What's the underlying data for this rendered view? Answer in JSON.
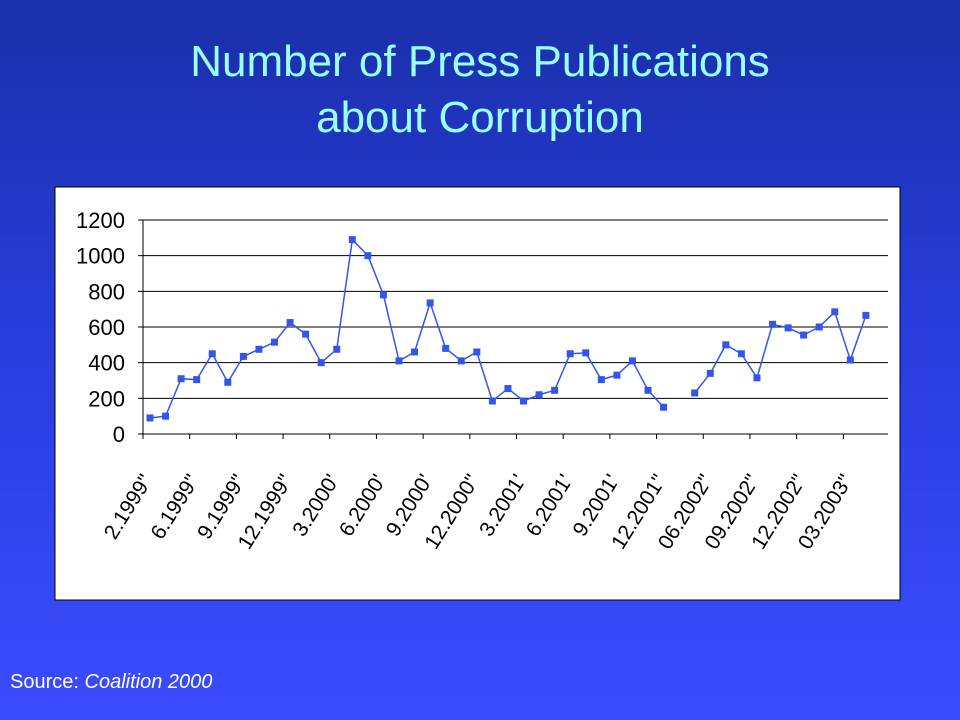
{
  "chart_data": {
    "type": "line",
    "title": [
      "Number of Press Publications",
      "about Corruption"
    ],
    "categories": [
      "2.1999\"",
      null,
      null,
      "6.1999\"",
      null,
      null,
      "9.1999\"",
      null,
      null,
      "12.1999\"",
      null,
      null,
      "3.2000'",
      null,
      null,
      "6.2000'",
      null,
      null,
      "9.2000'",
      null,
      null,
      "12.2000\"",
      null,
      null,
      "3.2001'",
      null,
      null,
      "6.2001'",
      null,
      null,
      "9.2001'",
      null,
      null,
      "12.2001\"",
      null,
      null,
      "06.2002\"",
      null,
      null,
      "09.2002\"",
      null,
      null,
      "12.2002\"",
      null,
      null,
      "03.2003\"",
      null
    ],
    "series": [
      {
        "name": null,
        "color": "#3355ee",
        "values": [
          90,
          100,
          310,
          305,
          450,
          290,
          435,
          475,
          515,
          625,
          560,
          400,
          475,
          1090,
          1000,
          780,
          410,
          460,
          735,
          480,
          410,
          460,
          185,
          255,
          185,
          220,
          245,
          450,
          455,
          305,
          330,
          410,
          245,
          150,
          null,
          230,
          340,
          500,
          450,
          315,
          615,
          595,
          555,
          600,
          685,
          415,
          665
        ]
      }
    ],
    "ylim": [
      0,
      1200
    ],
    "yticks": [
      0,
      200,
      400,
      600,
      800,
      1000,
      1200
    ],
    "grid": true
  },
  "source": {
    "label": "Source:",
    "name": "Coalition 2000"
  }
}
